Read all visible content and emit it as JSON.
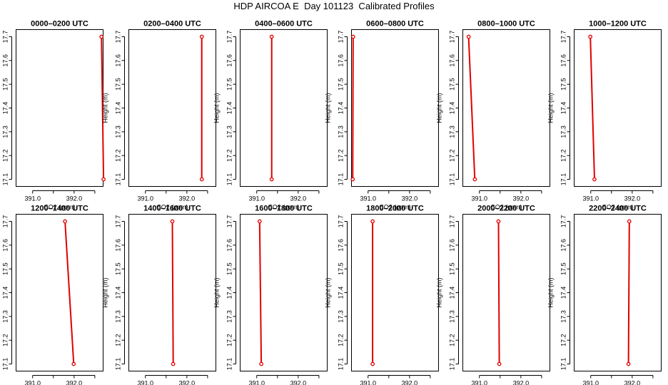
{
  "figure": {
    "title": "HDP AIRCOA E  Day 101123  Calibrated Profiles"
  },
  "colors": {
    "profile": "#e00000",
    "axis": "#000000",
    "background": "#ffffff"
  },
  "chart_data": [
    {
      "type": "line",
      "title": "0000–0200 UTC",
      "xlabel": "CO2 (ppm)",
      "ylabel": "Height (m)",
      "xlim": [
        390.6,
        392.7
      ],
      "ylim": [
        17.07,
        17.73
      ],
      "xticks": [
        391.0,
        391.5,
        392.0,
        392.5
      ],
      "xtick_labels": [
        "391.0",
        "",
        "392.0",
        ""
      ],
      "yticks": [
        17.1,
        17.2,
        17.3,
        17.4,
        17.5,
        17.6,
        17.7
      ],
      "grid": false,
      "series": [
        {
          "x": [
            392.66,
            392.71
          ],
          "y": [
            17.7,
            17.1
          ],
          "markers": [
            "o",
            "o"
          ]
        }
      ]
    },
    {
      "type": "line",
      "title": "0200–0400 UTC",
      "xlabel": "CO2 (ppm)",
      "ylabel": "Height (m)",
      "xlim": [
        390.6,
        392.7
      ],
      "ylim": [
        17.07,
        17.73
      ],
      "xticks": [
        391.0,
        391.5,
        392.0,
        392.5
      ],
      "xtick_labels": [
        "391.0",
        "",
        "392.0",
        ""
      ],
      "yticks": [
        17.1,
        17.2,
        17.3,
        17.4,
        17.5,
        17.6,
        17.7
      ],
      "grid": false,
      "series": [
        {
          "x": [
            392.36,
            392.36
          ],
          "y": [
            17.7,
            17.1
          ],
          "markers": [
            "o",
            "o"
          ]
        }
      ]
    },
    {
      "type": "line",
      "title": "0400–0600 UTC",
      "xlabel": "CO2 (ppm)",
      "ylabel": "Height (m)",
      "xlim": [
        390.6,
        392.7
      ],
      "ylim": [
        17.07,
        17.73
      ],
      "xticks": [
        391.0,
        391.5,
        392.0,
        392.5
      ],
      "xtick_labels": [
        "391.0",
        "",
        "392.0",
        ""
      ],
      "yticks": [
        17.1,
        17.2,
        17.3,
        17.4,
        17.5,
        17.6,
        17.7
      ],
      "grid": false,
      "series": [
        {
          "x": [
            391.36,
            391.36
          ],
          "y": [
            17.7,
            17.1
          ],
          "markers": [
            "o",
            "o"
          ]
        }
      ]
    },
    {
      "type": "line",
      "title": "0600–0800 UTC",
      "xlabel": "CO2 (ppm)",
      "ylabel": "Height (m)",
      "xlim": [
        390.6,
        392.7
      ],
      "ylim": [
        17.07,
        17.73
      ],
      "xticks": [
        391.0,
        391.5,
        392.0,
        392.5
      ],
      "xtick_labels": [
        "391.0",
        "",
        "392.0",
        ""
      ],
      "yticks": [
        17.1,
        17.2,
        17.3,
        17.4,
        17.5,
        17.6,
        17.7
      ],
      "grid": false,
      "series": [
        {
          "x": [
            390.64,
            390.63
          ],
          "y": [
            17.7,
            17.1
          ],
          "markers": [
            "o",
            "o"
          ]
        }
      ]
    },
    {
      "type": "line",
      "title": "0800–1000 UTC",
      "xlabel": "CO2 (ppm)",
      "ylabel": "Height (m)",
      "xlim": [
        390.6,
        392.7
      ],
      "ylim": [
        17.07,
        17.73
      ],
      "xticks": [
        391.0,
        391.5,
        392.0,
        392.5
      ],
      "xtick_labels": [
        "391.0",
        "",
        "392.0",
        ""
      ],
      "yticks": [
        17.1,
        17.2,
        17.3,
        17.4,
        17.5,
        17.6,
        17.7
      ],
      "grid": false,
      "series": [
        {
          "x": [
            390.74,
            390.89
          ],
          "y": [
            17.7,
            17.1
          ],
          "markers": [
            "o",
            "o"
          ]
        }
      ]
    },
    {
      "type": "line",
      "title": "1000–1200 UTC",
      "xlabel": "CO2 (ppm)",
      "ylabel": "Height (m)",
      "xlim": [
        390.6,
        392.7
      ],
      "ylim": [
        17.07,
        17.73
      ],
      "xticks": [
        391.0,
        391.5,
        392.0,
        392.5
      ],
      "xtick_labels": [
        "391.0",
        "",
        "392.0",
        ""
      ],
      "yticks": [
        17.1,
        17.2,
        17.3,
        17.4,
        17.5,
        17.6,
        17.7
      ],
      "grid": false,
      "series": [
        {
          "x": [
            390.99,
            391.09
          ],
          "y": [
            17.7,
            17.1
          ],
          "markers": [
            "o",
            "o"
          ]
        }
      ]
    },
    {
      "type": "line",
      "title": "1200–1400 UTC",
      "xlabel": "CO2 (ppm)",
      "ylabel": "Height (m)",
      "xlim": [
        390.6,
        392.7
      ],
      "ylim": [
        17.07,
        17.73
      ],
      "xticks": [
        391.0,
        391.5,
        392.0,
        392.5
      ],
      "xtick_labels": [
        "391.0",
        "",
        "392.0",
        ""
      ],
      "yticks": [
        17.1,
        17.2,
        17.3,
        17.4,
        17.5,
        17.6,
        17.7
      ],
      "grid": false,
      "series": [
        {
          "x": [
            391.78,
            391.99
          ],
          "y": [
            17.7,
            17.1
          ],
          "markers": [
            "o",
            "o"
          ]
        }
      ]
    },
    {
      "type": "line",
      "title": "1400–1600 UTC",
      "xlabel": "CO2 (ppm)",
      "ylabel": "Height (m)",
      "xlim": [
        390.6,
        392.7
      ],
      "ylim": [
        17.07,
        17.73
      ],
      "xticks": [
        391.0,
        391.5,
        392.0,
        392.5
      ],
      "xtick_labels": [
        "391.0",
        "",
        "392.0",
        ""
      ],
      "yticks": [
        17.1,
        17.2,
        17.3,
        17.4,
        17.5,
        17.6,
        17.7
      ],
      "grid": false,
      "series": [
        {
          "x": [
            391.65,
            391.67
          ],
          "y": [
            17.7,
            17.1
          ],
          "markers": [
            "o",
            "o"
          ]
        }
      ]
    },
    {
      "type": "line",
      "title": "1600–1800 UTC",
      "xlabel": "CO2 (ppm)",
      "ylabel": "Height (m)",
      "xlim": [
        390.6,
        392.7
      ],
      "ylim": [
        17.07,
        17.73
      ],
      "xticks": [
        391.0,
        391.5,
        392.0,
        392.5
      ],
      "xtick_labels": [
        "391.0",
        "",
        "392.0",
        ""
      ],
      "yticks": [
        17.1,
        17.2,
        17.3,
        17.4,
        17.5,
        17.6,
        17.7
      ],
      "grid": false,
      "series": [
        {
          "x": [
            391.07,
            391.11
          ],
          "y": [
            17.7,
            17.1
          ],
          "markers": [
            "o",
            "o"
          ]
        }
      ]
    },
    {
      "type": "line",
      "title": "1800–2000 UTC",
      "xlabel": "CO2 (ppm)",
      "ylabel": "Height (m)",
      "xlim": [
        390.6,
        392.7
      ],
      "ylim": [
        17.07,
        17.73
      ],
      "xticks": [
        391.0,
        391.5,
        392.0,
        392.5
      ],
      "xtick_labels": [
        "391.0",
        "",
        "392.0",
        ""
      ],
      "yticks": [
        17.1,
        17.2,
        17.3,
        17.4,
        17.5,
        17.6,
        17.7
      ],
      "grid": false,
      "series": [
        {
          "x": [
            391.11,
            391.11
          ],
          "y": [
            17.7,
            17.1
          ],
          "markers": [
            "o",
            "o"
          ]
        }
      ]
    },
    {
      "type": "line",
      "title": "2000–2200 UTC",
      "xlabel": "CO2 (ppm)",
      "ylabel": "Height (m)",
      "xlim": [
        390.6,
        392.7
      ],
      "ylim": [
        17.07,
        17.73
      ],
      "xticks": [
        391.0,
        391.5,
        392.0,
        392.5
      ],
      "xtick_labels": [
        "391.0",
        "",
        "392.0",
        ""
      ],
      "yticks": [
        17.1,
        17.2,
        17.3,
        17.4,
        17.5,
        17.6,
        17.7
      ],
      "grid": false,
      "series": [
        {
          "x": [
            391.46,
            391.48
          ],
          "y": [
            17.7,
            17.1
          ],
          "markers": [
            "o",
            "o"
          ]
        }
      ]
    },
    {
      "type": "line",
      "title": "2200–2400 UTC",
      "xlabel": "CO2 (ppm)",
      "ylabel": "Height (m)",
      "xlim": [
        390.6,
        392.7
      ],
      "ylim": [
        17.07,
        17.73
      ],
      "xticks": [
        391.0,
        391.5,
        392.0,
        392.5
      ],
      "xtick_labels": [
        "391.0",
        "",
        "392.0",
        ""
      ],
      "yticks": [
        17.1,
        17.2,
        17.3,
        17.4,
        17.5,
        17.6,
        17.7
      ],
      "grid": false,
      "series": [
        {
          "x": [
            391.93,
            391.91
          ],
          "y": [
            17.7,
            17.1
          ],
          "markers": [
            "o",
            "o"
          ]
        }
      ]
    }
  ]
}
